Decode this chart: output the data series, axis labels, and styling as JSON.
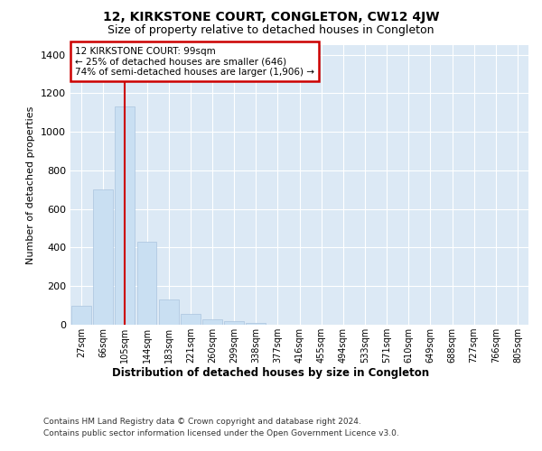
{
  "title": "12, KIRKSTONE COURT, CONGLETON, CW12 4JW",
  "subtitle": "Size of property relative to detached houses in Congleton",
  "xlabel": "Distribution of detached houses by size in Congleton",
  "ylabel": "Number of detached properties",
  "categories": [
    "27sqm",
    "66sqm",
    "105sqm",
    "144sqm",
    "183sqm",
    "221sqm",
    "260sqm",
    "299sqm",
    "338sqm",
    "377sqm",
    "416sqm",
    "455sqm",
    "494sqm",
    "533sqm",
    "571sqm",
    "610sqm",
    "649sqm",
    "688sqm",
    "727sqm",
    "766sqm",
    "805sqm"
  ],
  "values": [
    100,
    700,
    1130,
    430,
    130,
    55,
    30,
    20,
    10,
    0,
    0,
    0,
    0,
    0,
    0,
    0,
    0,
    0,
    0,
    0,
    0
  ],
  "bar_color": "#c9dff2",
  "bar_edge_color": "#aac4de",
  "vline_x": 2,
  "vline_color": "#cc0000",
  "annotation_text": "12 KIRKSTONE COURT: 99sqm\n← 25% of detached houses are smaller (646)\n74% of semi-detached houses are larger (1,906) →",
  "annotation_box_color": "#ffffff",
  "annotation_box_edge": "#cc0000",
  "ylim": [
    0,
    1450
  ],
  "yticks": [
    0,
    200,
    400,
    600,
    800,
    1000,
    1200,
    1400
  ],
  "plot_background": "#dce9f5",
  "grid_color": "#ffffff",
  "title_fontsize": 10,
  "subtitle_fontsize": 9,
  "footer_line1": "Contains HM Land Registry data © Crown copyright and database right 2024.",
  "footer_line2": "Contains public sector information licensed under the Open Government Licence v3.0."
}
